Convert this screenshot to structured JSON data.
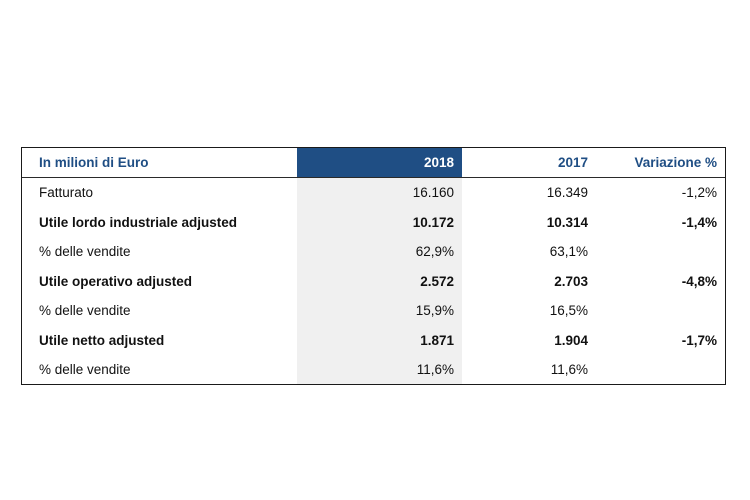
{
  "table": {
    "header": {
      "label": "In milioni di Euro",
      "col_2018": "2018",
      "col_2017": "2017",
      "col_variation": "Variazione %"
    },
    "accent_color": "#1f4e84",
    "rows": [
      {
        "label": "Fatturato",
        "v2018": "16.160",
        "v2017": "16.349",
        "variation": "-1,2%",
        "bold": false
      },
      {
        "label": "Utile lordo industriale adjusted",
        "v2018": "10.172",
        "v2017": "10.314",
        "variation": "-1,4%",
        "bold": true
      },
      {
        "label": "% delle vendite",
        "v2018": "62,9%",
        "v2017": "63,1%",
        "variation": "",
        "bold": false
      },
      {
        "label": "Utile operativo adjusted",
        "v2018": "2.572",
        "v2017": "2.703",
        "variation": "-4,8%",
        "bold": true
      },
      {
        "label": "% delle vendite",
        "v2018": "15,9%",
        "v2017": "16,5%",
        "variation": "",
        "bold": false
      },
      {
        "label": "Utile netto adjusted",
        "v2018": "1.871",
        "v2017": "1.904",
        "variation": "-1,7%",
        "bold": true
      },
      {
        "label": "% delle vendite",
        "v2018": "11,6%",
        "v2017": "11,6%",
        "variation": "",
        "bold": false
      }
    ]
  }
}
